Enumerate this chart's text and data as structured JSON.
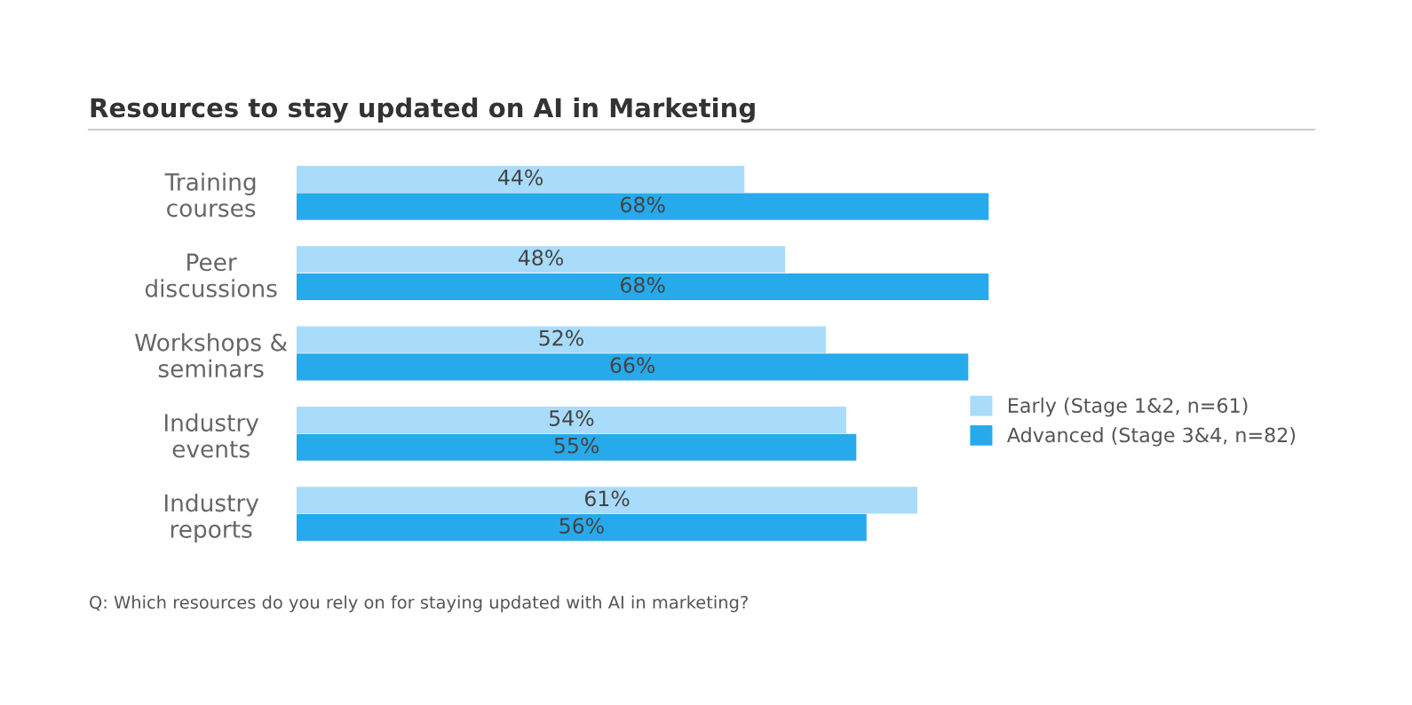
{
  "chart_data": {
    "type": "bar",
    "orientation": "horizontal",
    "title": "Resources to stay updated on AI in Marketing",
    "categories": [
      "Training\ncourses",
      "Peer\ndiscussions",
      "Workshops &\nseminars",
      "Industry\nevents",
      "Industry\nreports"
    ],
    "series": [
      {
        "name": "Early (Stage 1&2, n=61)",
        "color": "#a9dcfb",
        "values": [
          44,
          48,
          52,
          54,
          61
        ],
        "value_labels": [
          "44%",
          "48%",
          "52%",
          "54%",
          "61%"
        ]
      },
      {
        "name": "Advanced (Stage 3&4, n=82)",
        "color": "#26aaeb",
        "values": [
          68,
          68,
          66,
          55,
          56
        ],
        "value_labels": [
          "68%",
          "68%",
          "66%",
          "55%",
          "56%"
        ]
      }
    ],
    "xlim": [
      0,
      100
    ],
    "tick_labels": "y",
    "grid": false,
    "legend": "right",
    "annotations": [
      "Q: Which resources do you rely on for staying updated with AI in marketing?"
    ]
  }
}
